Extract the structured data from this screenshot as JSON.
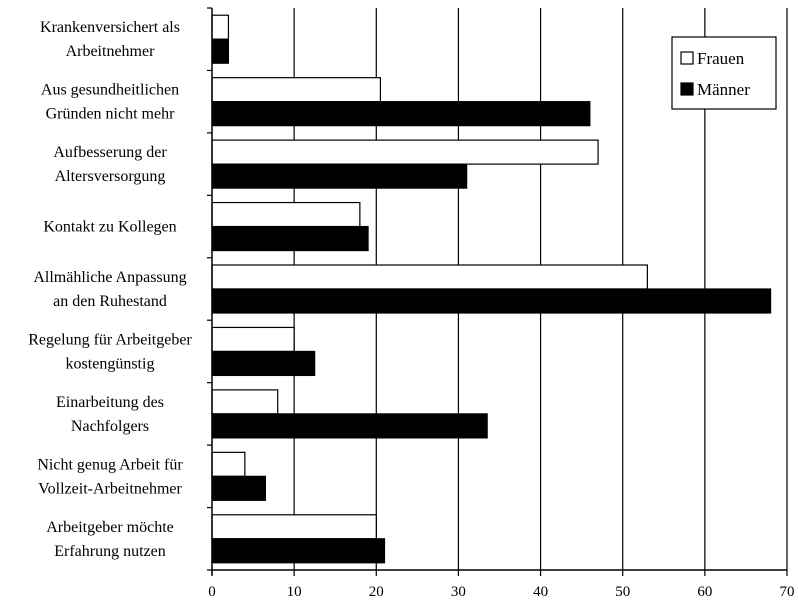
{
  "chart_data": {
    "type": "bar",
    "orientation": "horizontal",
    "categories": [
      [
        "Krankenversichert als",
        "Arbeitnehmer"
      ],
      [
        "Aus gesundheitlichen",
        "Gründen nicht mehr"
      ],
      [
        "Aufbesserung der",
        "Altersversorgung"
      ],
      [
        "Kontakt zu Kollegen"
      ],
      [
        "Allmähliche Anpassung",
        "an den Ruhestand"
      ],
      [
        "Regelung für Arbeitgeber",
        "kostengünstig"
      ],
      [
        "Einarbeitung des",
        "Nachfolgers"
      ],
      [
        "Nicht genug Arbeit für",
        "Vollzeit-Arbeitnehmer"
      ],
      [
        "Arbeitgeber möchte",
        "Erfahrung nutzen"
      ]
    ],
    "series": [
      {
        "name": "Frauen",
        "color": "#ffffff",
        "values": [
          2,
          20.5,
          47,
          18,
          53,
          10,
          8,
          4,
          20
        ]
      },
      {
        "name": "Männer",
        "color": "#000000",
        "values": [
          2,
          46,
          31,
          19,
          68,
          12.5,
          33.5,
          6.5,
          21
        ]
      }
    ],
    "xlim": [
      0,
      70
    ],
    "xticks": [
      0,
      10,
      20,
      30,
      40,
      50,
      60,
      70
    ],
    "grid": true,
    "legend_position": "top-right",
    "title": "",
    "xlabel": "",
    "ylabel": ""
  }
}
